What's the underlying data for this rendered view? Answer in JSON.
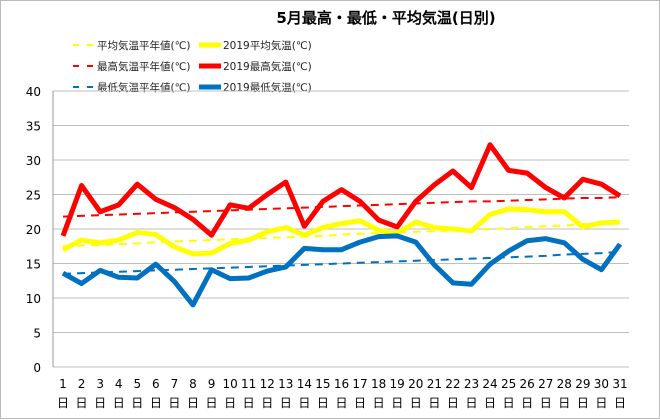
{
  "chart_data": {
    "type": "line",
    "title": "5月最高・最低・平均気温(日別)",
    "xlabel": "",
    "ylabel": "",
    "ylim": [
      0,
      40
    ],
    "yticks": [
      0,
      5,
      10,
      15,
      20,
      25,
      30,
      35,
      40
    ],
    "x": [
      1,
      2,
      3,
      4,
      5,
      6,
      7,
      8,
      9,
      10,
      11,
      12,
      13,
      14,
      15,
      16,
      17,
      18,
      19,
      20,
      21,
      22,
      23,
      24,
      25,
      26,
      27,
      28,
      29,
      30,
      31
    ],
    "x_suffix": "日",
    "grid": true,
    "legend_placement": "top-left",
    "series": [
      {
        "name": "平均気温平年値(℃)",
        "color": "#FFFF00",
        "style": "dashed",
        "values": [
          17.5,
          17.6,
          17.7,
          17.8,
          17.9,
          18.1,
          18.2,
          18.3,
          18.4,
          18.5,
          18.6,
          18.7,
          18.8,
          18.9,
          19.0,
          19.2,
          19.3,
          19.4,
          19.5,
          19.6,
          19.7,
          19.8,
          19.9,
          20.0,
          20.1,
          20.3,
          20.4,
          20.5,
          20.7,
          20.8,
          21.0
        ]
      },
      {
        "name": "2019平均気温(℃)",
        "color": "#FFFF00",
        "style": "solid",
        "values": [
          17.0,
          18.4,
          18.0,
          18.4,
          19.5,
          19.2,
          17.4,
          16.4,
          16.5,
          17.9,
          18.4,
          19.6,
          20.2,
          19.1,
          20.2,
          20.8,
          21.2,
          19.8,
          19.4,
          21.0,
          20.2,
          20.0,
          19.7,
          22.1,
          22.9,
          22.8,
          22.5,
          22.5,
          20.3,
          20.9,
          21.0
        ]
      },
      {
        "name": "最高気温平年値(℃)",
        "color": "#FF0000",
        "style": "dashed",
        "values": [
          21.8,
          21.9,
          22.0,
          22.1,
          22.2,
          22.3,
          22.4,
          22.5,
          22.6,
          22.7,
          22.8,
          22.9,
          23.0,
          23.1,
          23.2,
          23.3,
          23.4,
          23.5,
          23.6,
          23.7,
          23.8,
          23.9,
          24.0,
          24.0,
          24.1,
          24.2,
          24.3,
          24.4,
          24.5,
          24.5,
          24.6
        ]
      },
      {
        "name": "2019最高気温(℃)",
        "color": "#FF0000",
        "style": "solid",
        "values": [
          19.0,
          26.3,
          22.5,
          23.5,
          26.5,
          24.3,
          23.1,
          21.4,
          19.1,
          23.5,
          23.0,
          25.0,
          26.8,
          20.4,
          24.0,
          25.7,
          24.0,
          21.3,
          20.3,
          24.0,
          26.4,
          28.4,
          26.0,
          32.2,
          28.5,
          28.1,
          26.0,
          24.5,
          27.2,
          26.5,
          24.8
        ]
      },
      {
        "name": "最低気温平年値(℃)",
        "color": "#0070C0",
        "style": "dashed",
        "values": [
          13.5,
          13.6,
          13.7,
          13.8,
          13.9,
          14.0,
          14.1,
          14.2,
          14.3,
          14.4,
          14.5,
          14.6,
          14.7,
          14.8,
          14.9,
          15.0,
          15.1,
          15.2,
          15.3,
          15.4,
          15.5,
          15.6,
          15.7,
          15.8,
          15.9,
          16.0,
          16.1,
          16.3,
          16.4,
          16.5,
          16.7
        ]
      },
      {
        "name": "2019最低気温(℃)",
        "color": "#0070C0",
        "style": "solid",
        "values": [
          13.6,
          12.1,
          14.0,
          13.0,
          12.9,
          14.9,
          12.4,
          9.0,
          14.1,
          12.8,
          12.9,
          13.9,
          14.5,
          17.2,
          17.0,
          17.0,
          18.1,
          18.9,
          19.0,
          18.1,
          14.8,
          12.2,
          12.0,
          14.9,
          16.8,
          18.3,
          18.6,
          18.0,
          15.6,
          14.1,
          17.8
        ]
      }
    ]
  }
}
